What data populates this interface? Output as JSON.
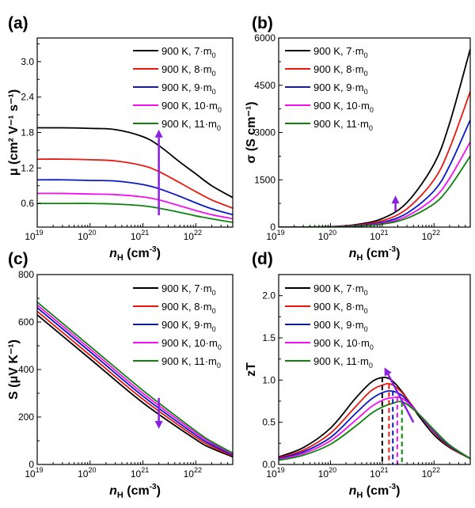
{
  "colors": {
    "black": "#000000",
    "red": "#e8180f",
    "blue": "#0a18c8",
    "magenta": "#f20ff2",
    "green": "#0d820d",
    "arrow": "#8a1fe0"
  },
  "legend": [
    {
      "text": "900 K, 7·m",
      "sub": "0",
      "color": "#000000"
    },
    {
      "text": "900 K, 8·m",
      "sub": "0",
      "color": "#e8180f"
    },
    {
      "text": "900 K, 9·m",
      "sub": "0",
      "color": "#0a18c8"
    },
    {
      "text": "900 K, 10·m",
      "sub": "0",
      "color": "#f20ff2"
    },
    {
      "text": "900 K, 11·m",
      "sub": "0",
      "color": "#0d820d"
    }
  ],
  "chart_data": [
    {
      "panel": "(a)",
      "type": "line",
      "xscale": "log",
      "xlabel": "n",
      "xlabel_sub": "H",
      "xlabel_unit": " (cm",
      "xlabel_exp": "-3",
      "xlabel_end": ")",
      "ylabel": "μ (cm² V⁻¹ s⁻¹)",
      "xlim": [
        1e+19,
        5e+22
      ],
      "ylim": [
        0.2,
        3.4
      ],
      "yticks": [
        "0.6",
        "1.2",
        "1.8",
        "2.4",
        "3.0"
      ],
      "yticks_values": [
        0.6,
        1.2,
        1.8,
        2.4,
        3.0
      ],
      "xticks_exp": [
        "19",
        "20",
        "21",
        "22"
      ],
      "x": [
        1e+19,
        3e+19,
        1e+20,
        3e+20,
        1e+21,
        2e+21,
        5e+21,
        1e+22,
        2e+22,
        5e+22
      ],
      "series": [
        {
          "name": "900 K, 7·m0",
          "color": "#000000",
          "values": [
            1.88,
            1.88,
            1.87,
            1.85,
            1.73,
            1.58,
            1.3,
            1.1,
            0.9,
            0.7
          ]
        },
        {
          "name": "900 K, 8·m0",
          "color": "#e8180f",
          "values": [
            1.35,
            1.35,
            1.34,
            1.32,
            1.24,
            1.14,
            0.95,
            0.8,
            0.66,
            0.52
          ]
        },
        {
          "name": "900 K, 9·m0",
          "color": "#0a18c8",
          "values": [
            1.0,
            1.0,
            0.99,
            0.98,
            0.92,
            0.85,
            0.72,
            0.61,
            0.51,
            0.41
          ]
        },
        {
          "name": "900 K, 10·m0",
          "color": "#f20ff2",
          "values": [
            0.77,
            0.77,
            0.76,
            0.75,
            0.71,
            0.66,
            0.56,
            0.48,
            0.41,
            0.34
          ]
        },
        {
          "name": "900 K, 11·m0",
          "color": "#0d820d",
          "values": [
            0.6,
            0.6,
            0.6,
            0.59,
            0.56,
            0.52,
            0.45,
            0.39,
            0.34,
            0.28
          ]
        }
      ],
      "arrow": {
        "x": 2e+21,
        "y_from": 0.4,
        "y_to": 1.85,
        "direction": "up"
      },
      "legend_position": "top-right"
    },
    {
      "panel": "(b)",
      "type": "line",
      "xscale": "log",
      "xlabel": "n",
      "xlabel_sub": "H",
      "xlabel_unit": " (cm",
      "xlabel_exp": "-3",
      "xlabel_end": ")",
      "ylabel": "σ (S cm⁻¹)",
      "xlim": [
        1e+19,
        5e+22
      ],
      "ylim": [
        0,
        6000
      ],
      "yticks": [
        "0",
        "1500",
        "3000",
        "4500",
        "6000"
      ],
      "yticks_values": [
        0,
        1500,
        3000,
        4500,
        6000
      ],
      "xticks_exp": [
        "19",
        "20",
        "21",
        "22"
      ],
      "x": [
        1e+19,
        3e+19,
        1e+20,
        3e+20,
        1e+21,
        3e+21,
        1e+22,
        2e+22,
        5e+22
      ],
      "series": [
        {
          "name": "900 K, 7·m0",
          "color": "#000000",
          "values": [
            1,
            3,
            15,
            75,
            270,
            780,
            2000,
            3300,
            5650
          ]
        },
        {
          "name": "900 K, 8·m0",
          "color": "#e8180f",
          "values": [
            1,
            2,
            11,
            55,
            200,
            580,
            1500,
            2500,
            4300
          ]
        },
        {
          "name": "900 K, 9·m0",
          "color": "#0a18c8",
          "values": [
            1,
            2,
            8,
            42,
            150,
            440,
            1150,
            1950,
            3400
          ]
        },
        {
          "name": "900 K, 10·m0",
          "color": "#f20ff2",
          "values": [
            0,
            1,
            6,
            33,
            120,
            350,
            920,
            1550,
            2700
          ]
        },
        {
          "name": "900 K, 11·m0",
          "color": "#0d820d",
          "values": [
            0,
            1,
            5,
            26,
            95,
            280,
            740,
            1270,
            2250
          ]
        }
      ],
      "arrow": {
        "x": 1.8e+21,
        "y_from": 500,
        "y_to": 1000,
        "direction": "up"
      },
      "legend_position": "top-left"
    },
    {
      "panel": "(c)",
      "type": "line",
      "xscale": "log",
      "xlabel": "n",
      "xlabel_sub": "H",
      "xlabel_unit": " (cm",
      "xlabel_exp": "-3",
      "xlabel_end": ")",
      "ylabel": "S (μV K⁻¹)",
      "xlim": [
        1e+19,
        5e+22
      ],
      "ylim": [
        0,
        800
      ],
      "yticks": [
        "0",
        "200",
        "400",
        "600",
        "800"
      ],
      "yticks_values": [
        0,
        200,
        400,
        600,
        800
      ],
      "xticks_exp": [
        "19",
        "20",
        "21",
        "22"
      ],
      "x": [
        1e+19,
        1e+20,
        1e+21,
        1e+22,
        2e+22,
        5e+22
      ],
      "series": [
        {
          "name": "900 K, 7·m0",
          "color": "#000000",
          "values": [
            630,
            445,
            260,
            105,
            68,
            32
          ]
        },
        {
          "name": "900 K, 8·m0",
          "color": "#e8180f",
          "values": [
            645,
            460,
            275,
            115,
            76,
            36
          ]
        },
        {
          "name": "900 K, 9·m0",
          "color": "#0a18c8",
          "values": [
            660,
            475,
            288,
            124,
            83,
            40
          ]
        },
        {
          "name": "900 K, 10·m0",
          "color": "#f20ff2",
          "values": [
            672,
            487,
            300,
            133,
            90,
            44
          ]
        },
        {
          "name": "900 K, 11·m0",
          "color": "#0d820d",
          "values": [
            684,
            498,
            312,
            141,
            96,
            48
          ]
        }
      ],
      "arrow": {
        "x": 2e+21,
        "y_from": 280,
        "y_to": 150,
        "direction": "down"
      },
      "legend_position": "top-right"
    },
    {
      "panel": "(d)",
      "type": "line",
      "xscale": "log",
      "xlabel": "n",
      "xlabel_sub": "H",
      "xlabel_unit": " (cm",
      "xlabel_exp": "-3",
      "xlabel_end": ")",
      "ylabel": "zT",
      "xlim": [
        1e+19,
        5e+22
      ],
      "ylim": [
        0,
        2.25
      ],
      "yticks": [
        "0.0",
        "0.5",
        "1.0",
        "1.5",
        "2.0"
      ],
      "yticks_values": [
        0,
        0.5,
        1.0,
        1.5,
        2.0
      ],
      "xticks_exp": [
        "19",
        "20",
        "21",
        "22"
      ],
      "x": [
        1e+19,
        3e+19,
        1e+20,
        3e+20,
        6e+20,
        1e+21,
        1.5e+21,
        2.5e+21,
        5e+21,
        1e+22,
        2e+22,
        5e+22
      ],
      "series": [
        {
          "name": "900 K, 7·m0",
          "color": "#000000",
          "values": [
            0.09,
            0.2,
            0.43,
            0.78,
            0.97,
            1.03,
            1.0,
            0.85,
            0.58,
            0.35,
            0.2,
            0.07
          ]
        },
        {
          "name": "900 K, 8·m0",
          "color": "#e8180f",
          "values": [
            0.08,
            0.17,
            0.37,
            0.68,
            0.87,
            0.94,
            0.95,
            0.84,
            0.6,
            0.38,
            0.21,
            0.07
          ]
        },
        {
          "name": "900 K, 9·m0",
          "color": "#0a18c8",
          "values": [
            0.07,
            0.15,
            0.32,
            0.6,
            0.77,
            0.85,
            0.87,
            0.81,
            0.6,
            0.39,
            0.22,
            0.07
          ]
        },
        {
          "name": "900 K, 10·m0",
          "color": "#f20ff2",
          "values": [
            0.06,
            0.13,
            0.28,
            0.52,
            0.68,
            0.76,
            0.79,
            0.78,
            0.6,
            0.4,
            0.23,
            0.07
          ]
        },
        {
          "name": "900 K, 11·m0",
          "color": "#0d820d",
          "values": [
            0.05,
            0.11,
            0.24,
            0.45,
            0.6,
            0.68,
            0.72,
            0.74,
            0.6,
            0.41,
            0.23,
            0.07
          ]
        }
      ],
      "peaks": [
        {
          "x": 1e+21,
          "y": 1.03,
          "color": "#000000"
        },
        {
          "x": 1.35e+21,
          "y": 0.95,
          "color": "#e8180f"
        },
        {
          "x": 1.6e+21,
          "y": 0.87,
          "color": "#0a18c8"
        },
        {
          "x": 1.95e+21,
          "y": 0.8,
          "color": "#f20ff2"
        },
        {
          "x": 2.4e+21,
          "y": 0.74,
          "color": "#0d820d"
        }
      ],
      "arrow": {
        "x_from": 4e+21,
        "y_from": 0.5,
        "x_to": 1.1e+21,
        "y_to": 1.15,
        "direction": "up-left"
      },
      "legend_position": "top-left"
    }
  ]
}
